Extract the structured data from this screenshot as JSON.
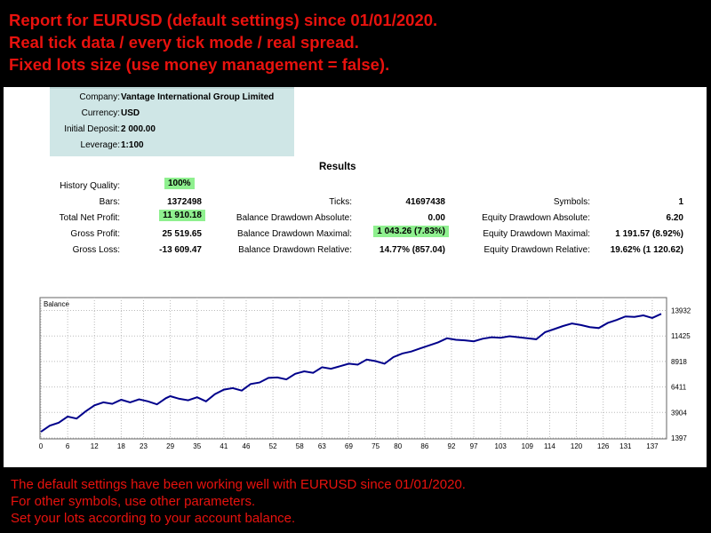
{
  "header": {
    "line1": "Report for EURUSD (default settings) since 01/01/2020.",
    "line2": "Real tick data / every tick mode / real spread.",
    "line3": "Fixed lots size (use money management = false)."
  },
  "account": {
    "company_label": "Company:",
    "company": "Vantage International Group Limited",
    "currency_label": "Currency:",
    "currency": "USD",
    "deposit_label": "Initial Deposit:",
    "deposit": "2 000.00",
    "leverage_label": "Leverage:",
    "leverage": "1:100"
  },
  "results": {
    "title": "Results",
    "history_quality_label": "History Quality:",
    "history_quality": "100%",
    "bars_label": "Bars:",
    "bars": "1372498",
    "ticks_label": "Ticks:",
    "ticks": "41697438",
    "symbols_label": "Symbols:",
    "symbols": "1",
    "total_net_profit_label": "Total Net Profit:",
    "total_net_profit": "11 910.18",
    "balance_dd_abs_label": "Balance Drawdown Absolute:",
    "balance_dd_abs": "0.00",
    "equity_dd_abs_label": "Equity Drawdown Absolute:",
    "equity_dd_abs": "6.20",
    "gross_profit_label": "Gross Profit:",
    "gross_profit": "25 519.65",
    "balance_dd_max_label": "Balance Drawdown Maximal:",
    "balance_dd_max": "1 043.26 (7.83%)",
    "equity_dd_max_label": "Equity Drawdown Maximal:",
    "equity_dd_max": "1 191.57 (8.92%)",
    "gross_loss_label": "Gross Loss:",
    "gross_loss": "-13 609.47",
    "balance_dd_rel_label": "Balance Drawdown Relative:",
    "balance_dd_rel": "14.77% (857.04)",
    "equity_dd_rel_label": "Equity Drawdown Relative:",
    "equity_dd_rel": "19.62% (1 120.62)"
  },
  "colors": {
    "accent_red": "#e8120e",
    "highlight_green": "#8ff08f",
    "info_bg": "#cfe6e6",
    "line": "#00008b"
  },
  "chart_data": {
    "type": "line",
    "title": "Balance",
    "xlim": [
      0,
      140
    ],
    "ylim": [
      1397,
      14500
    ],
    "x_ticks": [
      0,
      6,
      12,
      18,
      23,
      29,
      35,
      41,
      46,
      52,
      58,
      63,
      69,
      75,
      80,
      86,
      92,
      97,
      103,
      109,
      114,
      120,
      126,
      131,
      137
    ],
    "y_ticks": [
      1397,
      3904,
      6411,
      8918,
      11425,
      13932
    ],
    "series": [
      {
        "x": [
          0,
          2,
          4,
          6,
          8,
          10,
          12,
          14,
          16,
          18,
          20,
          22,
          24,
          26,
          28,
          29,
          31,
          33,
          35,
          37,
          39,
          41,
          43,
          45,
          47,
          49,
          51,
          53,
          55,
          57,
          59,
          61,
          63,
          65,
          67,
          69,
          71,
          73,
          75,
          77,
          79,
          81,
          83,
          85,
          87,
          89,
          91,
          93,
          95,
          97,
          99,
          101,
          103,
          105,
          107,
          109,
          111,
          113,
          115,
          117,
          119,
          121,
          123,
          125,
          127,
          129,
          131,
          133,
          135,
          137,
          139
        ],
        "y": [
          2000,
          2600,
          2900,
          3500,
          3300,
          4000,
          4600,
          4900,
          4750,
          5150,
          4900,
          5200,
          5000,
          4700,
          5300,
          5500,
          5250,
          5100,
          5400,
          5000,
          5700,
          6150,
          6300,
          6050,
          6700,
          6850,
          7300,
          7350,
          7150,
          7700,
          7950,
          7800,
          8350,
          8200,
          8450,
          8700,
          8600,
          9100,
          8950,
          8700,
          9350,
          9700,
          9900,
          10200,
          10500,
          10800,
          11200,
          11050,
          11000,
          10900,
          11150,
          11300,
          11250,
          11400,
          11300,
          11200,
          11100,
          11800,
          12100,
          12400,
          12650,
          12500,
          12300,
          12200,
          12700,
          13000,
          13350,
          13300,
          13450,
          13200,
          13600
        ]
      }
    ]
  },
  "footer": {
    "line1": "The default settings have been working well with EURUSD since 01/01/2020.",
    "line2": "For other symbols, use other parameters.",
    "line3": "Set your lots according to your account balance."
  }
}
